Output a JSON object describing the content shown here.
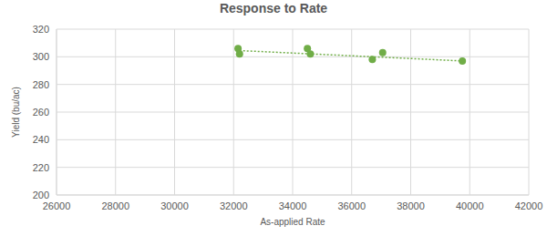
{
  "chart_data": {
    "type": "scatter",
    "title": "Response to Rate",
    "x_label": "As-applied Rate",
    "y_label": "Yield (bu/ac)",
    "xlim": [
      26000,
      42000
    ],
    "xticks": [
      26000,
      28000,
      30000,
      32000,
      34000,
      36000,
      38000,
      40000,
      42000
    ],
    "ylim": [
      200,
      320
    ],
    "yticks": [
      200,
      220,
      240,
      260,
      280,
      300,
      320
    ],
    "grid": true,
    "series": [
      {
        "type": "scatter",
        "marker": "circle",
        "color": "#70ad47",
        "x": [
          32150,
          32200,
          34500,
          34600,
          36700,
          37050,
          39750
        ],
        "values": [
          306,
          302,
          306,
          302,
          298,
          303,
          297
        ]
      },
      {
        "type": "line",
        "line_style": "dotted",
        "color": "#70ad47",
        "x": [
          32200,
          39750
        ],
        "values": [
          304.5,
          297
        ]
      }
    ]
  }
}
